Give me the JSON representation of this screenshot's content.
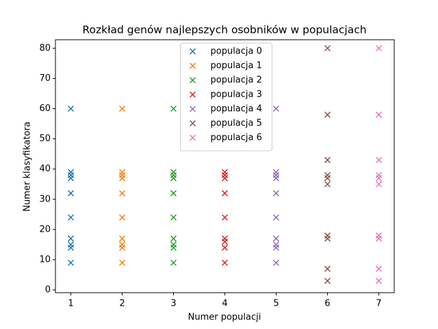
{
  "chart_data": {
    "type": "scatter",
    "title": "Rozkład genów najlepszych osobników w populacjach",
    "x_label": "Numer populacji",
    "y_label": "Numer klasyfikatora",
    "xlim": [
      0.7,
      7.3
    ],
    "xticks": [
      1,
      2,
      3,
      4,
      5,
      6,
      7
    ],
    "ylim": [
      -0.9,
      82.8
    ],
    "yticks": [
      0,
      10,
      20,
      30,
      40,
      50,
      60,
      70,
      80
    ],
    "legend": "upper center",
    "marker": "x",
    "series": [
      {
        "name": "populacja 0",
        "color": "#1f77b4",
        "x": [
          1,
          1,
          1,
          1,
          1,
          1,
          1,
          1,
          1,
          1
        ],
        "values": [
          60,
          39,
          38,
          37,
          32,
          24,
          17,
          15,
          14,
          9
        ]
      },
      {
        "name": "populacja 1",
        "color": "#ff7f0e",
        "x": [
          2,
          2,
          2,
          2,
          2,
          2,
          2,
          2,
          2,
          2
        ],
        "values": [
          60,
          39,
          38,
          37,
          32,
          24,
          17,
          15,
          14,
          9
        ]
      },
      {
        "name": "populacja 2",
        "color": "#2ca02c",
        "x": [
          3,
          3,
          3,
          3,
          3,
          3,
          3,
          3,
          3,
          3
        ],
        "values": [
          60,
          39,
          38,
          37,
          32,
          24,
          17,
          15,
          14,
          9
        ]
      },
      {
        "name": "populacja 3",
        "color": "#d62728",
        "x": [
          4,
          4,
          4,
          4,
          4,
          4,
          4,
          4,
          4,
          4
        ],
        "values": [
          60,
          39,
          38,
          37,
          32,
          24,
          17,
          16,
          14,
          9
        ]
      },
      {
        "name": "populacja 4",
        "color": "#9467bd",
        "x": [
          5,
          5,
          5,
          5,
          5,
          5,
          5,
          5,
          5,
          5
        ],
        "values": [
          60,
          39,
          38,
          37,
          32,
          24,
          17,
          15,
          14,
          9
        ]
      },
      {
        "name": "populacja 5",
        "color": "#8c564b",
        "x": [
          6,
          6,
          6,
          6,
          6,
          6,
          6,
          6,
          6,
          6
        ],
        "values": [
          80,
          58,
          43,
          38,
          37,
          35,
          18,
          17,
          7,
          3
        ]
      },
      {
        "name": "populacja 6",
        "color": "#e377c2",
        "x": [
          7,
          7,
          7,
          7,
          7,
          7,
          7,
          7,
          7,
          7
        ],
        "values": [
          80,
          58,
          43,
          38,
          37,
          35,
          18,
          17,
          7,
          3
        ]
      }
    ]
  }
}
